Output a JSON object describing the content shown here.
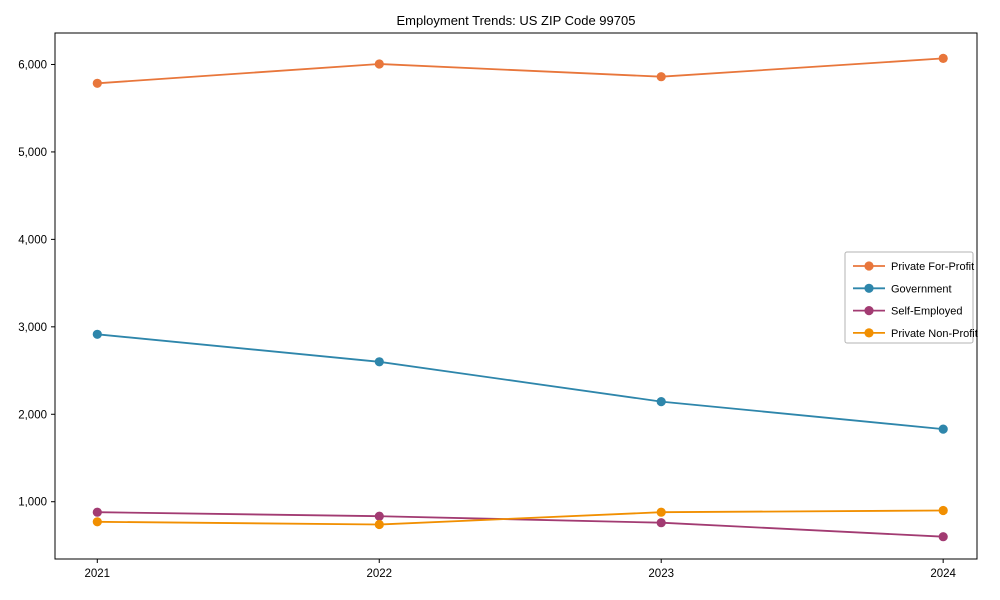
{
  "chart_data": {
    "type": "line",
    "title": "Employment Trends: US ZIP Code 99705",
    "xlabel": "",
    "ylabel": "",
    "categories": [
      "2021",
      "2022",
      "2023",
      "2024"
    ],
    "x": [
      2021,
      2022,
      2023,
      2024
    ],
    "xlim": [
      2020.85,
      2024.12
    ],
    "ylim": [
      345,
      6360
    ],
    "yticks": [
      1000,
      2000,
      3000,
      4000,
      5000,
      6000
    ],
    "ytick_labels": [
      "1,000",
      "2,000",
      "3,000",
      "4,000",
      "5,000",
      "6,000"
    ],
    "grid": false,
    "marker": "circle",
    "legend_position": "center-right",
    "background_color": "#ffffff",
    "spine_color": "#000000",
    "legend_border_color": "#b3b3b3",
    "series": [
      {
        "name": "Private For-Profit",
        "color": "#E8763B",
        "values": [
          5785,
          6005,
          5860,
          6070
        ]
      },
      {
        "name": "Government",
        "color": "#2E86AB",
        "values": [
          2915,
          2600,
          2145,
          1830
        ]
      },
      {
        "name": "Self-Employed",
        "color": "#A23B72",
        "values": [
          880,
          835,
          760,
          600
        ]
      },
      {
        "name": "Private Non-Profit",
        "color": "#F18F01",
        "values": [
          770,
          740,
          880,
          900
        ]
      }
    ]
  }
}
